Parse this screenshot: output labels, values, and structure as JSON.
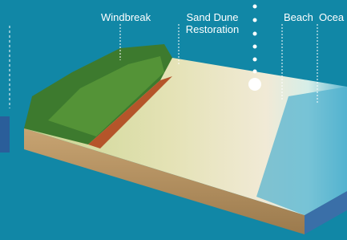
{
  "labels": [
    "Windbreak",
    "Sand Dune Restoration",
    "Beach",
    "Ocea"
  ]
}
